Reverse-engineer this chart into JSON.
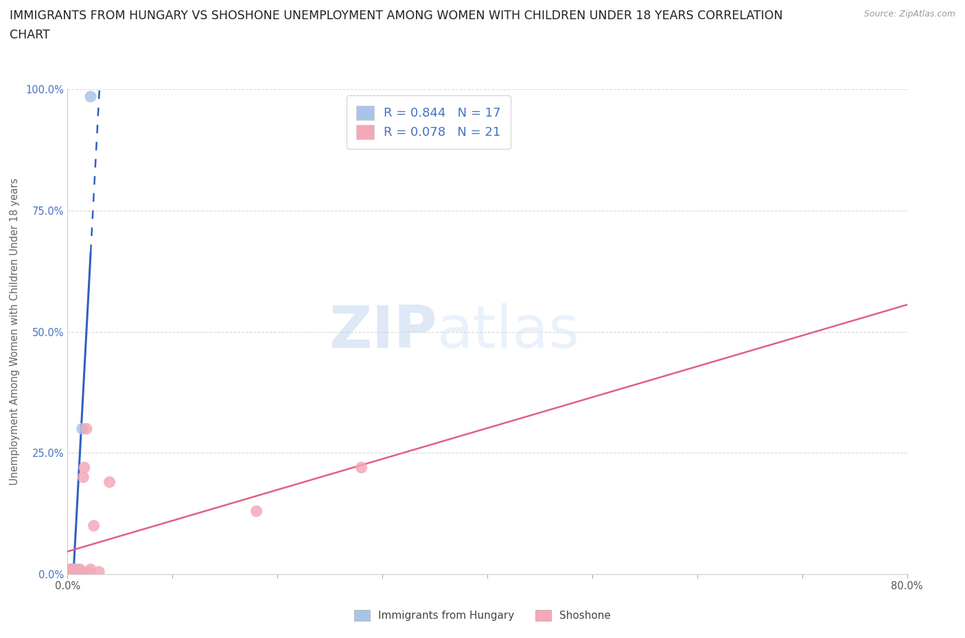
{
  "title_line1": "IMMIGRANTS FROM HUNGARY VS SHOSHONE UNEMPLOYMENT AMONG WOMEN WITH CHILDREN UNDER 18 YEARS CORRELATION",
  "title_line2": "CHART",
  "source": "Source: ZipAtlas.com",
  "ylabel": "Unemployment Among Women with Children Under 18 years",
  "xlim": [
    0.0,
    0.8
  ],
  "ylim": [
    0.0,
    1.0
  ],
  "xticks": [
    0.0,
    0.1,
    0.2,
    0.3,
    0.4,
    0.5,
    0.6,
    0.7,
    0.8
  ],
  "xticklabels": [
    "0.0%",
    "",
    "",
    "",
    "",
    "",
    "",
    "",
    "80.0%"
  ],
  "yticks": [
    0.0,
    0.25,
    0.5,
    0.75,
    1.0
  ],
  "yticklabels": [
    "0.0%",
    "25.0%",
    "50.0%",
    "75.0%",
    "100.0%"
  ],
  "hungary_x": [
    0.002,
    0.003,
    0.003,
    0.004,
    0.004,
    0.005,
    0.005,
    0.006,
    0.006,
    0.007,
    0.008,
    0.009,
    0.009,
    0.01,
    0.012,
    0.014,
    0.022
  ],
  "hungary_y": [
    0.005,
    0.005,
    0.01,
    0.005,
    0.01,
    0.005,
    0.01,
    0.005,
    0.01,
    0.005,
    0.005,
    0.005,
    0.01,
    0.005,
    0.005,
    0.3,
    0.985
  ],
  "shoshone_x": [
    0.002,
    0.003,
    0.004,
    0.005,
    0.006,
    0.007,
    0.008,
    0.009,
    0.01,
    0.012,
    0.013,
    0.015,
    0.016,
    0.018,
    0.02,
    0.022,
    0.025,
    0.03,
    0.04,
    0.18,
    0.28
  ],
  "shoshone_y": [
    0.005,
    0.01,
    0.005,
    0.005,
    0.005,
    0.005,
    0.005,
    0.005,
    0.005,
    0.01,
    0.005,
    0.2,
    0.22,
    0.3,
    0.005,
    0.01,
    0.1,
    0.005,
    0.19,
    0.13,
    0.22
  ],
  "hungary_color": "#a8c4e8",
  "shoshone_color": "#f4a8b8",
  "hungary_line_color": "#3060c0",
  "shoshone_line_color": "#e06080",
  "hungary_R": 0.844,
  "hungary_N": 17,
  "shoshone_R": 0.078,
  "shoshone_N": 21,
  "legend_label_hungary": "Immigrants from Hungary",
  "legend_label_shoshone": "Shoshone",
  "background_color": "#ffffff",
  "grid_color": "#d8d8d8",
  "watermark_zip": "ZIP",
  "watermark_atlas": "atlas",
  "title_fontsize": 12.5,
  "axis_fontsize": 10.5,
  "tick_fontsize": 10.5,
  "legend_fontsize": 13
}
